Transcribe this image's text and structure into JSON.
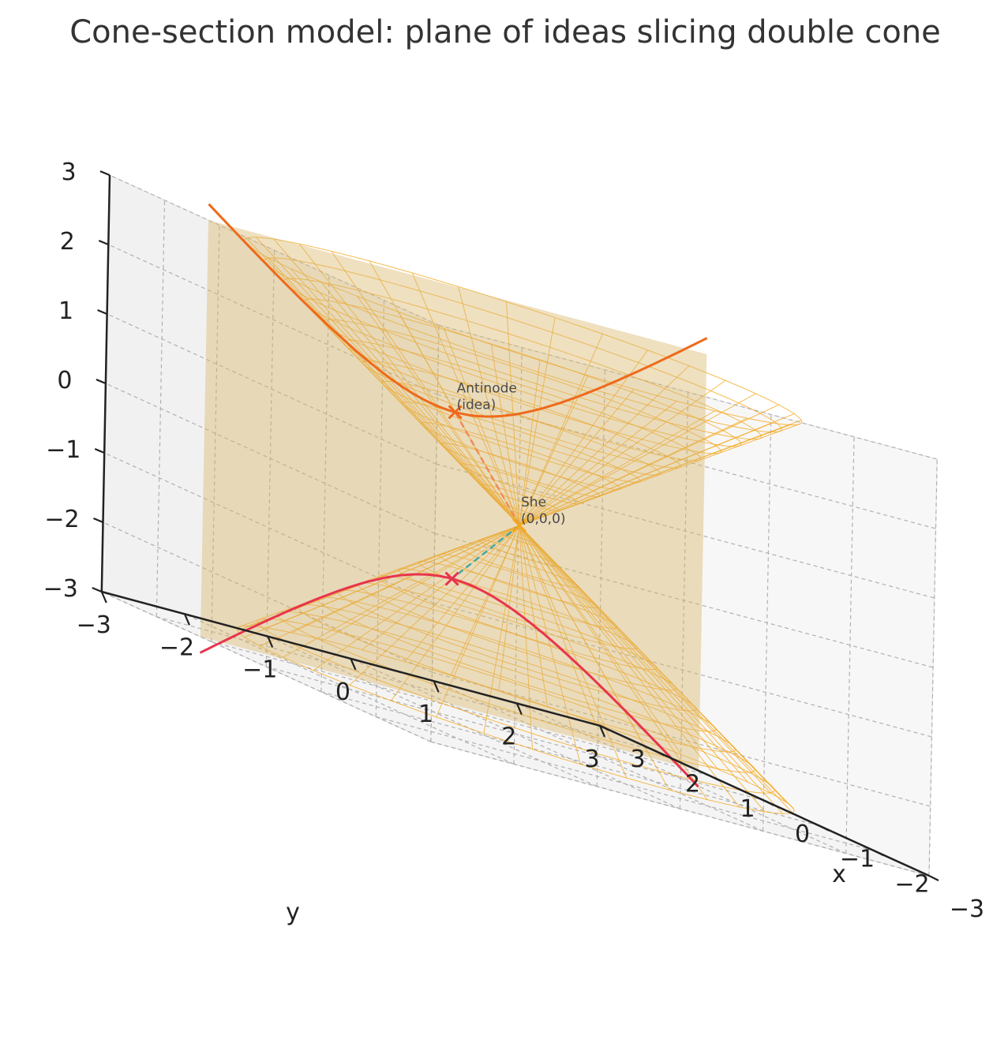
{
  "chart_data": {
    "type": "3d-surface",
    "title": "Cone-section model: plane of ideas slicing double cone",
    "xlabel": "x",
    "ylabel": "y",
    "zlabel": "",
    "xlim": [
      -3,
      3
    ],
    "ylim": [
      -3,
      3
    ],
    "zlim": [
      -3,
      3
    ],
    "x_ticks": [
      "−3",
      "−2",
      "−1",
      "0",
      "1",
      "2",
      "3"
    ],
    "y_ticks": [
      "−3",
      "−2",
      "−1",
      "0",
      "1",
      "2",
      "3"
    ],
    "z_ticks": [
      "−3",
      "−2",
      "−1",
      "0",
      "1",
      "2",
      "3"
    ],
    "grid": true,
    "surface": {
      "name": "double cone",
      "equation": "z^2 = x^2 + y^2",
      "color": "#f4a81c"
    },
    "plane": {
      "name": "plane of ideas",
      "x_value": 1.2,
      "color": "#d9b46a"
    },
    "curves": [
      {
        "name": "upper hyperbola branch",
        "color": "#ee6a1a"
      },
      {
        "name": "lower hyperbola branch",
        "color": "#e8344d"
      }
    ],
    "points": [
      {
        "label": "She\n(0,0,0)",
        "x": 0,
        "y": 0,
        "z": 0,
        "marker": "x",
        "color": "#f4a81c"
      },
      {
        "label": "Antinode\n(idea)",
        "x": 1.2,
        "y": 0,
        "z": 1.2,
        "marker": "x",
        "color": "#ee6a1a"
      },
      {
        "label": "",
        "x": 1.2,
        "y": 0,
        "z": -1.2,
        "marker": "x",
        "color": "#e8344d"
      }
    ],
    "annotations": [
      {
        "text_lines": [
          "She",
          "(0,0,0)"
        ],
        "point": "origin"
      },
      {
        "text_lines": [
          "Antinode",
          "(idea)"
        ],
        "point": "antinode"
      }
    ],
    "colors": {
      "cone": "#f4a81c",
      "plane": "#d9b46a",
      "upper_curve": "#ee6a1a",
      "lower_curve": "#e8344d",
      "dash_upper": "#f08a5a",
      "dash_lower": "#4aa6a0"
    }
  }
}
